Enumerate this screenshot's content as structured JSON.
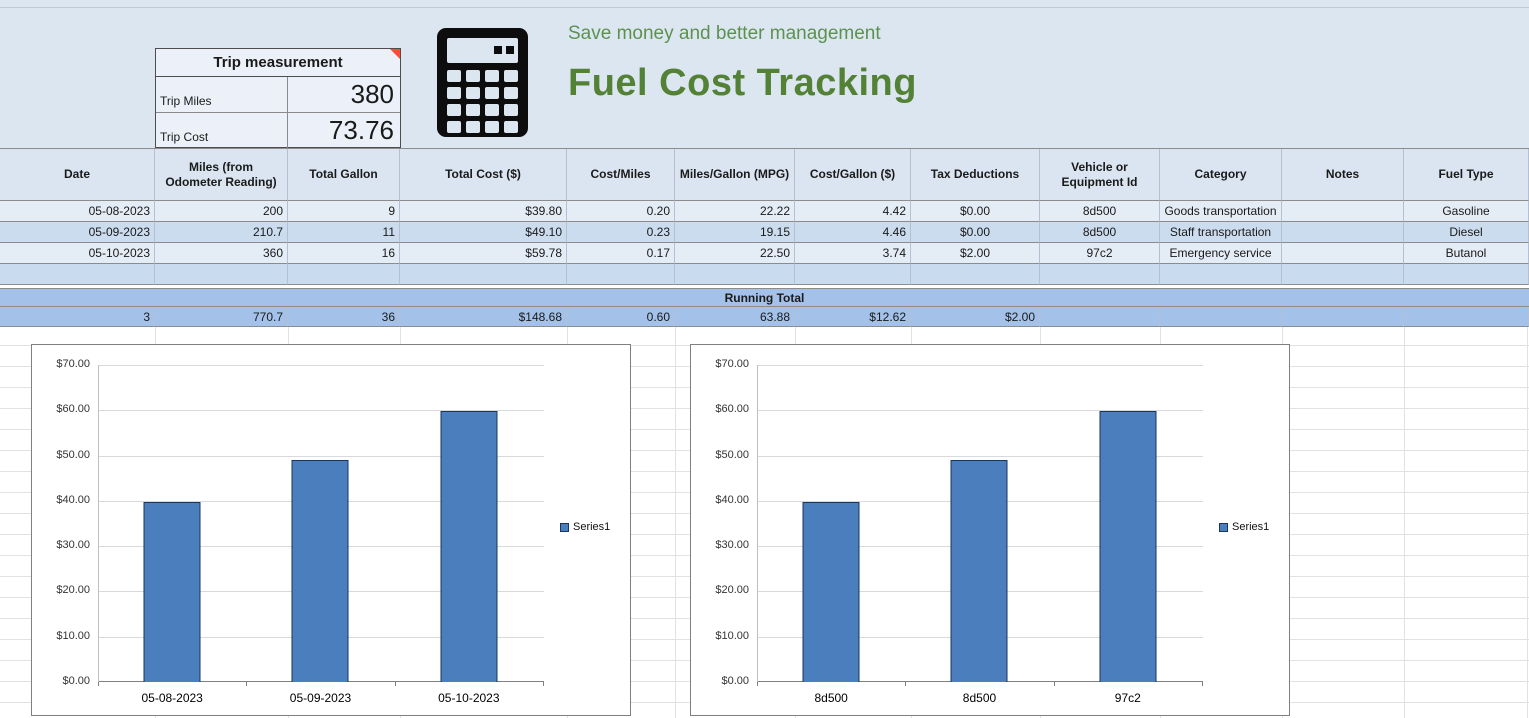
{
  "sheet": {
    "background_color": "#dce6f1",
    "subtitle": "Save money and better management",
    "title": "Fuel Cost Tracking",
    "title_color": "#538135",
    "subtitle_color": "#5d9150",
    "trip_box": {
      "title": "Trip measurement",
      "rows": [
        {
          "label": "Trip Miles",
          "value": "380"
        },
        {
          "label": "Trip Cost",
          "value": "73.76"
        }
      ]
    }
  },
  "table": {
    "columns": [
      "Date",
      "Miles (from Odometer Reading)",
      "Total Gallon",
      "Total Cost ($)",
      "Cost/Miles",
      "Miles/Gallon (MPG)",
      "Cost/Gallon ($)",
      "Tax Deductions",
      "Vehicle or Equipment Id",
      "Category",
      "Notes",
      "Fuel Type"
    ],
    "rows": [
      [
        "05-08-2023",
        "200",
        "9",
        "$39.80",
        "0.20",
        "22.22",
        "4.42",
        "$0.00",
        "8d500",
        "Goods transportation",
        "",
        "Gasoline"
      ],
      [
        "05-09-2023",
        "210.7",
        "11",
        "$49.10",
        "0.23",
        "19.15",
        "4.46",
        "$0.00",
        "8d500",
        "Staff transportation",
        "",
        "Diesel"
      ],
      [
        "05-10-2023",
        "360",
        "16",
        "$59.78",
        "0.17",
        "22.50",
        "3.74",
        "$2.00",
        "97c2",
        "Emergency service",
        "",
        "Butanol"
      ]
    ],
    "running_total_label": "Running Total",
    "totals": [
      "3",
      "770.7",
      "36",
      "$148.68",
      "0.60",
      "63.88",
      "$12.62",
      "$2.00",
      "",
      "",
      "",
      ""
    ]
  },
  "chart_data": [
    {
      "type": "bar",
      "title": "",
      "categories": [
        "05-08-2023",
        "05-09-2023",
        "05-10-2023"
      ],
      "values": [
        39.8,
        49.1,
        59.78
      ],
      "series": [
        {
          "name": "Series1",
          "values": [
            39.8,
            49.1,
            59.78
          ]
        }
      ],
      "xlabel": "",
      "ylabel": "",
      "ylim": [
        0,
        70
      ],
      "y_tick_step": 10,
      "y_ticks": [
        "$0.00",
        "$10.00",
        "$20.00",
        "$30.00",
        "$40.00",
        "$50.00",
        "$60.00",
        "$70.00"
      ],
      "grid": true,
      "legend_position": "right",
      "legend": [
        "Series1"
      ],
      "bar_color": "#4a7ebc",
      "bar_border_color": "#17375e"
    },
    {
      "type": "bar",
      "title": "",
      "categories": [
        "8d500",
        "8d500",
        "97c2"
      ],
      "values": [
        39.8,
        49.1,
        59.78
      ],
      "series": [
        {
          "name": "Series1",
          "values": [
            39.8,
            49.1,
            59.78
          ]
        }
      ],
      "xlabel": "",
      "ylabel": "",
      "ylim": [
        0,
        70
      ],
      "y_tick_step": 10,
      "y_ticks": [
        "$0.00",
        "$10.00",
        "$20.00",
        "$30.00",
        "$40.00",
        "$50.00",
        "$60.00",
        "$70.00"
      ],
      "grid": true,
      "legend_position": "right",
      "legend": [
        "Series1"
      ],
      "bar_color": "#4a7ebc",
      "bar_border_color": "#17375e"
    }
  ]
}
